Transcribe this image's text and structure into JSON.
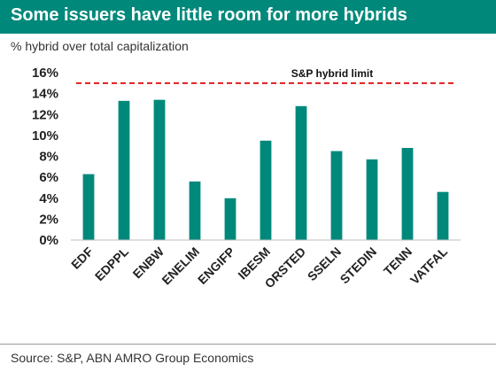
{
  "header": {
    "title": "Some issuers have little room for more hybrids",
    "subtitle": "% hybrid over total capitalization"
  },
  "footer": {
    "source": "Source: S&P, ABN AMRO Group Economics"
  },
  "colors": {
    "title_bar": "#00897b",
    "bar": "#00897b",
    "reference_line": "#e31a1c"
  },
  "chart_data": {
    "type": "bar",
    "categories": [
      "EDF",
      "EDPPL",
      "ENBW",
      "ENELIM",
      "ENGIFP",
      "IBESM",
      "ORSTED",
      "SSELN",
      "STEDIN",
      "TENN",
      "VATFAL"
    ],
    "values": [
      6.3,
      13.3,
      13.4,
      5.6,
      4.0,
      9.5,
      12.8,
      8.5,
      7.7,
      8.8,
      4.6
    ],
    "ylim": [
      0,
      16
    ],
    "yticks": [
      0,
      2,
      4,
      6,
      8,
      10,
      12,
      14,
      16
    ],
    "ytick_labels": [
      "0%",
      "2%",
      "4%",
      "6%",
      "8%",
      "10%",
      "12%",
      "14%",
      "16%"
    ],
    "reference_line": {
      "value": 15,
      "label": "S&P hybrid limit"
    },
    "grid": false,
    "legend": "none"
  }
}
